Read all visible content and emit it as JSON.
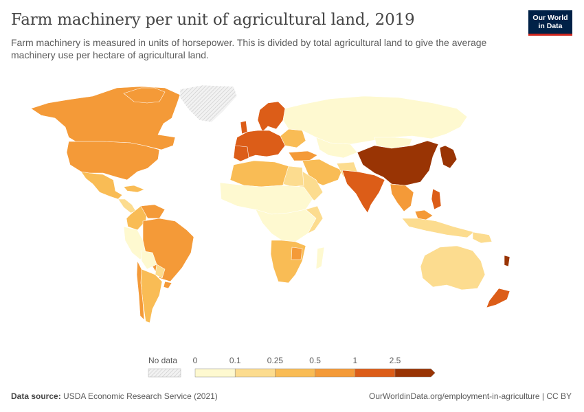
{
  "header": {
    "title": "Farm machinery per unit of agricultural land, 2019",
    "subtitle": "Farm machinery is measured in units of horsepower. This is divided by total agricultural land to give the average machinery use per hectare of agricultural land.",
    "logo_line1": "Our World",
    "logo_line2": "in Data"
  },
  "legend": {
    "no_data_label": "No data",
    "ticks": [
      "0",
      "0.1",
      "0.25",
      "0.5",
      "1",
      "2.5"
    ],
    "bins": [
      {
        "from": 0,
        "to": 0.1,
        "color": "#fef9d0"
      },
      {
        "from": 0.1,
        "to": 0.25,
        "color": "#fcdc8f"
      },
      {
        "from": 0.25,
        "to": 0.5,
        "color": "#f9bc55"
      },
      {
        "from": 0.5,
        "to": 1,
        "color": "#f49a38"
      },
      {
        "from": 1,
        "to": 2.5,
        "color": "#dc5d18"
      },
      {
        "from": 2.5,
        "to": null,
        "color": "#993404"
      }
    ],
    "no_data_color": "#e6e6e6"
  },
  "map_data": {
    "type": "choropleth",
    "year": 2019,
    "unit": "horsepower per hectare of agricultural land",
    "regions": [
      {
        "name": "Canada",
        "bin": 3
      },
      {
        "name": "United States",
        "bin": 3
      },
      {
        "name": "Mexico",
        "bin": 2
      },
      {
        "name": "Central America",
        "bin": 1
      },
      {
        "name": "Venezuela",
        "bin": 3
      },
      {
        "name": "Colombia",
        "bin": 2
      },
      {
        "name": "Peru",
        "bin": 0
      },
      {
        "name": "Brazil",
        "bin": 3
      },
      {
        "name": "Argentina",
        "bin": 2
      },
      {
        "name": "Uruguay",
        "bin": 3
      },
      {
        "name": "Morocco",
        "bin": 2
      },
      {
        "name": "Algeria",
        "bin": 2
      },
      {
        "name": "Egypt",
        "bin": 1
      },
      {
        "name": "Southern Africa",
        "bin": 2
      },
      {
        "name": "Zimbabwe",
        "bin": 3
      },
      {
        "name": "Nordic countries",
        "bin": 4
      },
      {
        "name": "Western Europe",
        "bin": 4
      },
      {
        "name": "Russia",
        "bin": 0
      },
      {
        "name": "Turkey",
        "bin": 3
      },
      {
        "name": "Iran",
        "bin": 2
      },
      {
        "name": "India",
        "bin": 4
      },
      {
        "name": "China",
        "bin": 5
      },
      {
        "name": "Japan",
        "bin": 5
      },
      {
        "name": "Southeast Asia",
        "bin": 3
      },
      {
        "name": "Australia",
        "bin": 1
      },
      {
        "name": "New Zealand",
        "bin": 4
      }
    ]
  },
  "footer": {
    "source_label": "Data source:",
    "source_text": "USDA Economic Research Service (2021)",
    "url_text": "OurWorldinData.org/employment-in-agriculture | CC BY"
  }
}
